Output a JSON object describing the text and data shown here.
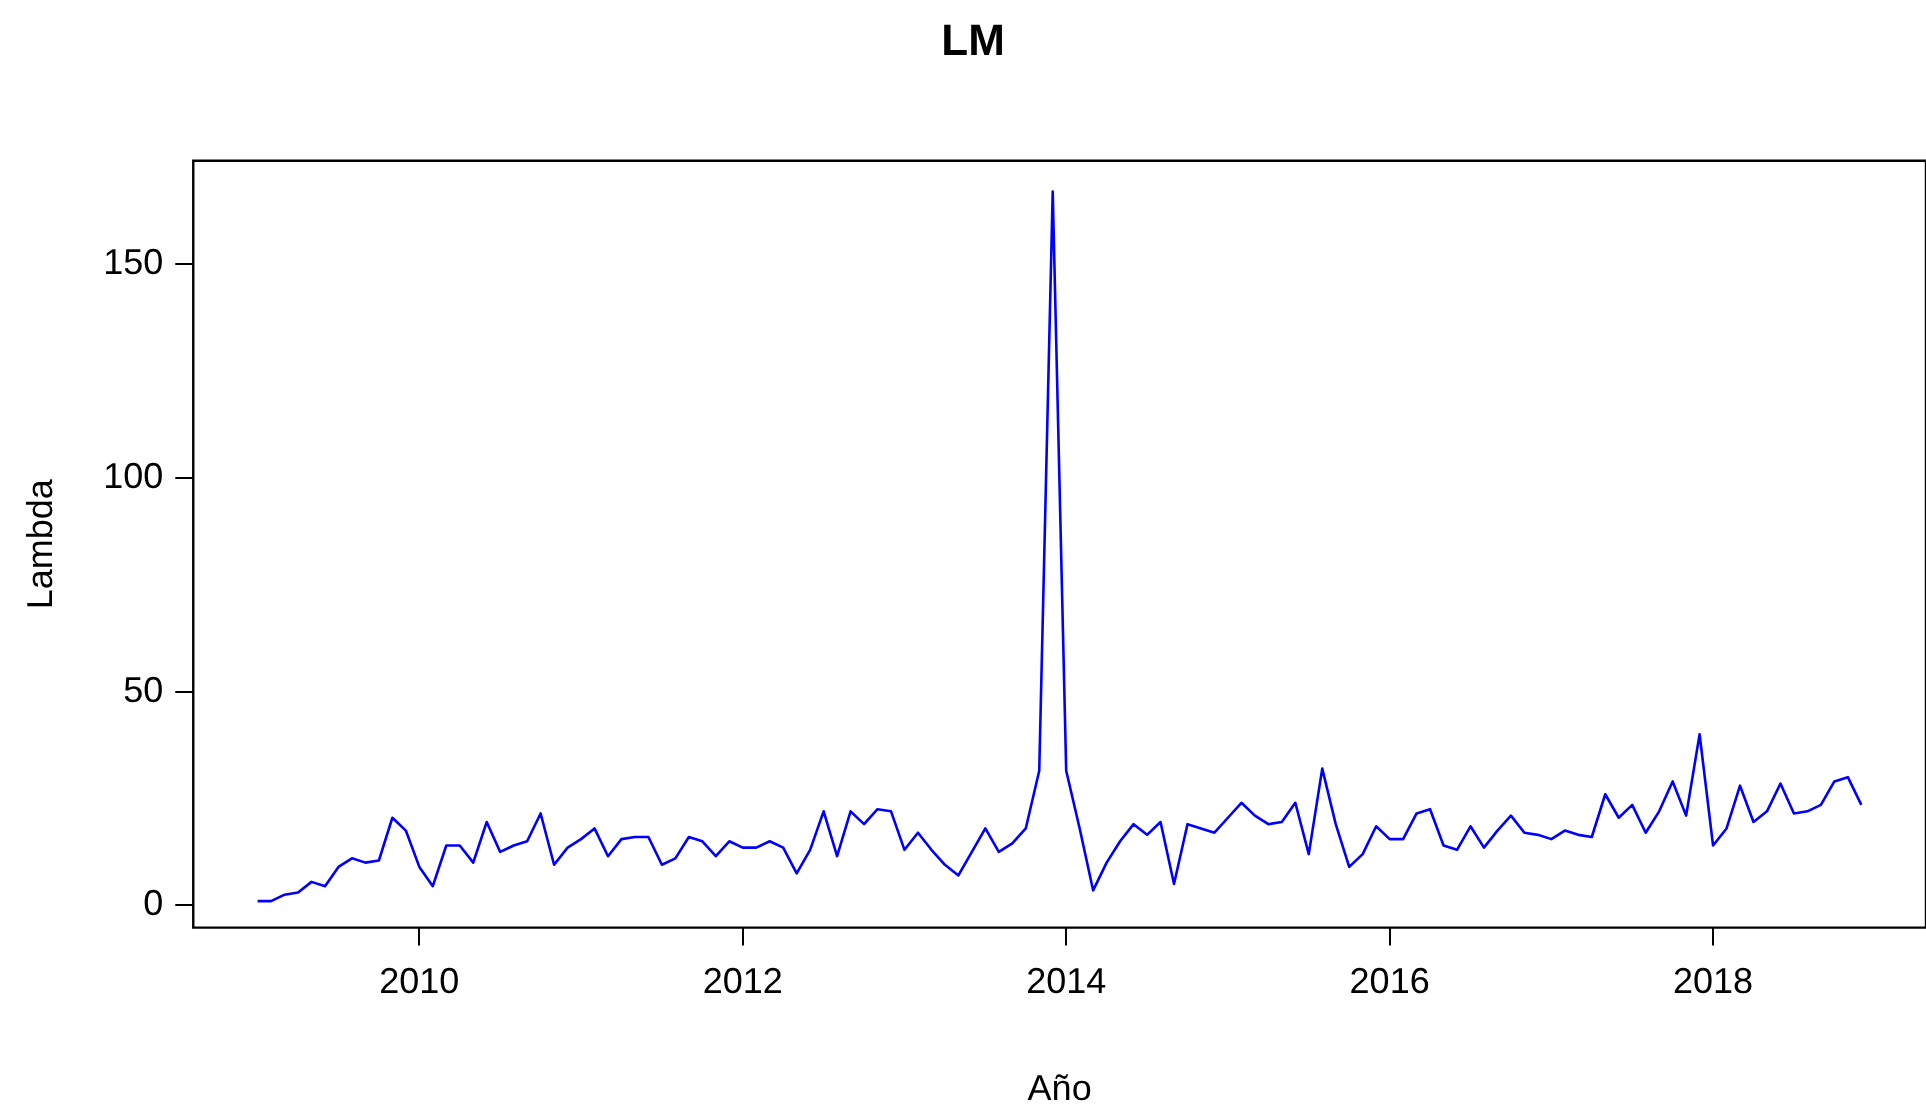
{
  "chart_data": {
    "type": "line",
    "title": "LM",
    "xlabel": "Año",
    "ylabel": "Lambda",
    "x": [
      "2009-01",
      "2009-02",
      "2009-03",
      "2009-04",
      "2009-05",
      "2009-06",
      "2009-07",
      "2009-08",
      "2009-09",
      "2009-10",
      "2009-11",
      "2009-12",
      "2010-01",
      "2010-02",
      "2010-03",
      "2010-04",
      "2010-05",
      "2010-06",
      "2010-07",
      "2010-08",
      "2010-09",
      "2010-10",
      "2010-11",
      "2010-12",
      "2011-01",
      "2011-02",
      "2011-03",
      "2011-04",
      "2011-05",
      "2011-06",
      "2011-07",
      "2011-08",
      "2011-09",
      "2011-10",
      "2011-11",
      "2011-12",
      "2012-01",
      "2012-02",
      "2012-03",
      "2012-04",
      "2012-05",
      "2012-06",
      "2012-07",
      "2012-08",
      "2012-09",
      "2012-10",
      "2012-11",
      "2012-12",
      "2013-01",
      "2013-02",
      "2013-03",
      "2013-04",
      "2013-05",
      "2013-06",
      "2013-07",
      "2013-08",
      "2013-09",
      "2013-10",
      "2013-11",
      "2013-12",
      "2014-01",
      "2014-02",
      "2014-03",
      "2014-04",
      "2014-05",
      "2014-06",
      "2014-07",
      "2014-08",
      "2014-09",
      "2014-10",
      "2014-11",
      "2014-12",
      "2015-01",
      "2015-02",
      "2015-03",
      "2015-04",
      "2015-05",
      "2015-06",
      "2015-07",
      "2015-08",
      "2015-09",
      "2015-10",
      "2015-11",
      "2015-12",
      "2016-01",
      "2016-02",
      "2016-03",
      "2016-04",
      "2016-05",
      "2016-06",
      "2016-07",
      "2016-08",
      "2016-09",
      "2016-10",
      "2016-11",
      "2016-12",
      "2017-01",
      "2017-02",
      "2017-03",
      "2017-04",
      "2017-05",
      "2017-06",
      "2017-07",
      "2017-08",
      "2017-09",
      "2017-10",
      "2017-11",
      "2017-12",
      "2018-01",
      "2018-02",
      "2018-03",
      "2018-04",
      "2018-05",
      "2018-06",
      "2018-07",
      "2018-08",
      "2018-09",
      "2018-10",
      "2018-11",
      "2018-12"
    ],
    "series": [
      {
        "color": "#0000ff",
        "values": [
          1,
          1,
          2.5,
          3,
          5.5,
          4.5,
          9,
          11,
          10,
          10.5,
          20.5,
          17.5,
          9,
          4.5,
          14,
          14,
          10,
          19.5,
          12.5,
          14,
          15,
          21.5,
          9.5,
          13.5,
          15.5,
          18,
          11.5,
          15.5,
          16,
          16,
          9.5,
          11,
          16,
          15,
          11.5,
          15,
          13.5,
          13.5,
          15,
          13.5,
          7.5,
          13,
          22,
          11.5,
          22,
          19,
          22.5,
          22,
          13,
          17,
          13,
          9.5,
          7,
          12.5,
          18,
          12.5,
          14.5,
          18,
          31.5,
          167,
          31.5,
          18,
          3.5,
          10,
          15,
          19,
          16.5,
          19.5,
          5,
          19,
          18,
          17,
          20.5,
          24,
          21,
          19,
          19.5,
          24,
          12,
          32,
          19,
          9,
          12,
          18.5,
          15.5,
          15.5,
          21.5,
          22.5,
          14,
          13,
          18.5,
          13.5,
          17.5,
          21,
          17,
          16.5,
          15.5,
          17.5,
          16.5,
          16,
          26,
          20.5,
          23.5,
          17,
          22,
          29,
          21,
          40,
          14,
          18,
          28,
          19.5,
          22,
          28.5,
          21.5,
          22,
          23.5,
          29,
          30,
          23.5
        ]
      }
    ],
    "xlim": [
      "2008-08-08",
      "2019-04-25"
    ],
    "xticks": [
      {
        "value": "2010-01-01",
        "label": "2010"
      },
      {
        "value": "2012-01-01",
        "label": "2012"
      },
      {
        "value": "2014-01-01",
        "label": "2014"
      },
      {
        "value": "2016-01-01",
        "label": "2016"
      },
      {
        "value": "2018-01-01",
        "label": "2018"
      }
    ],
    "ylim": [
      -5.2,
      174.2
    ],
    "yticks": [
      0,
      50,
      100,
      150
    ],
    "grid": false,
    "legend": false,
    "marker": "none",
    "line_style": "solid"
  }
}
